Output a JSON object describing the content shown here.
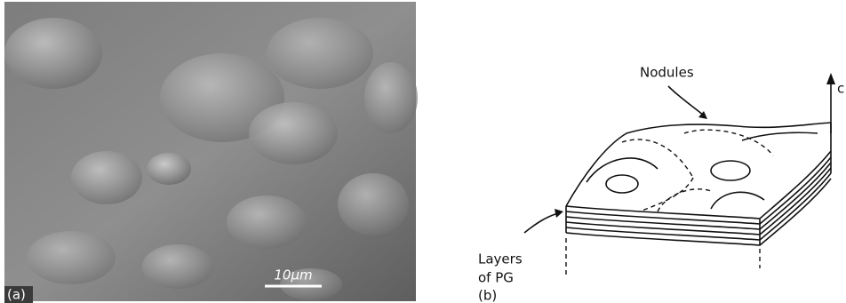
{
  "panels": [
    {
      "label": "(a)",
      "scale_bar": "10µm"
    },
    {
      "label": "(b)",
      "annotations": {
        "nodules": "Nodules",
        "axis": "c",
        "layers": [
          "Layers",
          "of PG"
        ]
      }
    }
  ]
}
